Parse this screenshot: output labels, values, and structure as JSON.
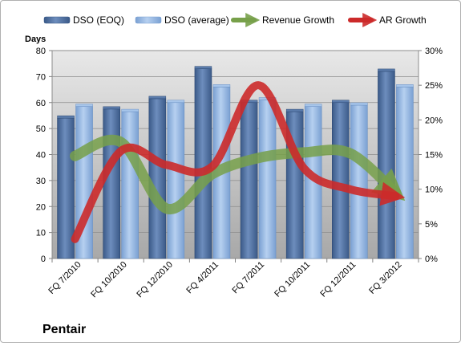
{
  "chart_data": {
    "type": "bar",
    "title": "Pentair",
    "ylabel": "Days",
    "categories": [
      "FQ 7/2010",
      "FQ 10/2010",
      "FQ 12/2010",
      "FQ 4/2011",
      "FQ 7/2011",
      "FQ 10/2011",
      "FQ 12/2011",
      "FQ 3/2012"
    ],
    "ylim": [
      0,
      80
    ],
    "y2lim": [
      0,
      30
    ],
    "yticks": [
      "0",
      "10",
      "20",
      "30",
      "40",
      "50",
      "60",
      "70",
      "80"
    ],
    "y2ticks": [
      "0%",
      "5%",
      "10%",
      "15%",
      "20%",
      "25%",
      "30%"
    ],
    "series": [
      {
        "name": "DSO (EOQ)",
        "type": "bar",
        "axis": "left",
        "values": [
          54,
          57.5,
          61.5,
          73,
          60,
          56.5,
          60,
          72
        ]
      },
      {
        "name": "DSO (average)",
        "type": "bar",
        "axis": "left",
        "values": [
          58.5,
          56.5,
          60,
          66,
          61,
          58.5,
          59,
          66
        ]
      },
      {
        "name": "Revenue Growth",
        "type": "line",
        "axis": "right",
        "values": [
          14.8,
          16.8,
          7.2,
          12.2,
          14.5,
          15.3,
          15.2,
          9.5
        ]
      },
      {
        "name": "AR Growth",
        "type": "line",
        "axis": "right",
        "values": [
          2.8,
          15.5,
          13.5,
          13.3,
          25.0,
          13.0,
          10.0,
          9.0
        ]
      }
    ],
    "colors": {
      "dso_eoq": "#4a6a98",
      "dso_avg": "#8fb3e0",
      "revenue": "#77a04a",
      "ar": "#cc2a2a",
      "plot_top": "#e8e8e8",
      "plot_bottom": "#a8a8a8"
    },
    "grid": true,
    "legend_position": "top"
  }
}
